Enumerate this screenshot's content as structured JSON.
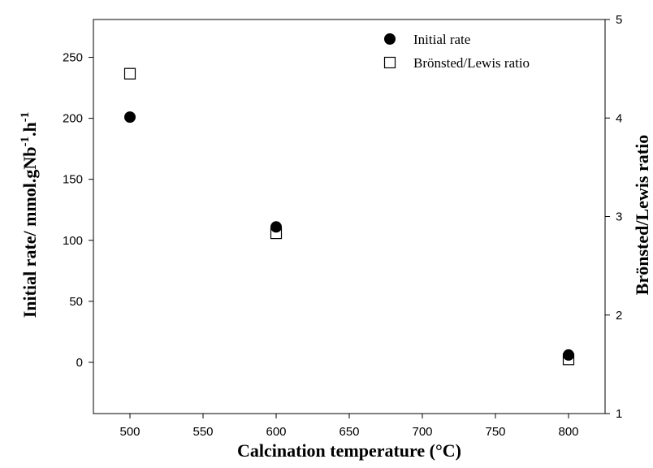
{
  "chart_data": {
    "type": "scatter",
    "x_values": [
      500,
      600,
      800
    ],
    "series": [
      {
        "name": "Initial rate",
        "axis": "left",
        "marker": "filled-circle",
        "color": "#000000",
        "values": [
          201,
          111,
          6
        ]
      },
      {
        "name": "Brönsted/Lewis ratio",
        "axis": "right",
        "marker": "open-square",
        "color": "#000000",
        "values": [
          4.45,
          2.83,
          1.55
        ]
      }
    ],
    "xlabel": "Calcination temperature (°C)",
    "ylabel_left": {
      "main": "Initial rate/ mmol.gNb",
      "sup1": "-1",
      "mid": ".h",
      "sup2": "-1"
    },
    "ylabel_right": "Brönsted/Lewis ratio",
    "xlim": [
      475,
      825
    ],
    "xticks": [
      "500",
      "550",
      "600",
      "650",
      "700",
      "750",
      "800"
    ],
    "ylim_left": [
      -42,
      281
    ],
    "yticks_left": [
      "0",
      "50",
      "100",
      "150",
      "200",
      "250"
    ],
    "ylim_right": [
      1,
      5
    ],
    "yticks_right": [
      "1",
      "2",
      "3",
      "4",
      "5"
    ],
    "legend_position": "top-right",
    "grid": false
  }
}
